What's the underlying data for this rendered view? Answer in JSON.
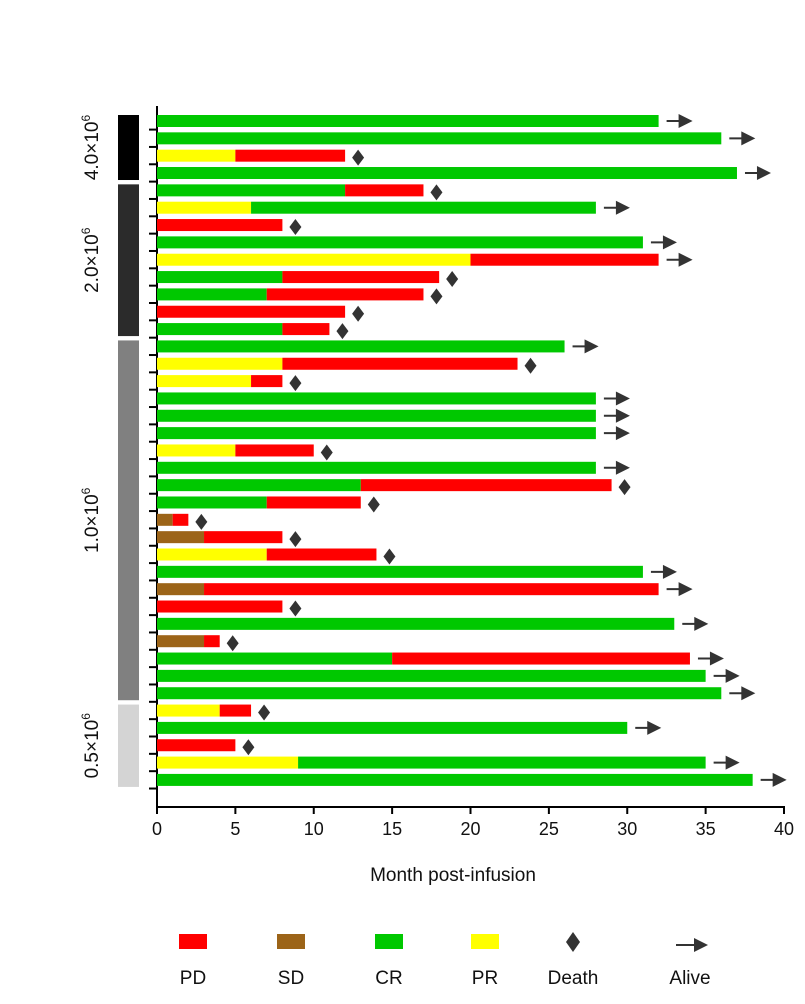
{
  "chart_data": {
    "type": "bar",
    "orientation": "horizontal",
    "subtype": "swimmer-plot",
    "xlabel": "Month post-infusion",
    "xlim": [
      0,
      40
    ],
    "xticks": [
      0,
      5,
      10,
      15,
      20,
      25,
      30,
      35,
      40
    ],
    "colors": {
      "PD": "#ff0000",
      "SD": "#9c6418",
      "CR": "#00c800",
      "PR": "#ffff00",
      "Death": "#333333",
      "Alive": "#333333"
    },
    "legend": [
      {
        "key": "PD",
        "label": "PD",
        "marker": "rect"
      },
      {
        "key": "SD",
        "label": "SD",
        "marker": "rect"
      },
      {
        "key": "CR",
        "label": "CR",
        "marker": "rect"
      },
      {
        "key": "PR",
        "label": "PR",
        "marker": "rect"
      },
      {
        "key": "Death",
        "label": "Death",
        "marker": "diamond"
      },
      {
        "key": "Alive",
        "label": "Alive",
        "marker": "arrow"
      }
    ],
    "legend_position": "bottom",
    "dose_groups": [
      {
        "label": "4.0×10",
        "exp": "6",
        "first_row": 0,
        "last_row": 3,
        "color": "#000000"
      },
      {
        "label": "2.0×10",
        "exp": "6",
        "first_row": 4,
        "last_row": 12,
        "color": "#2b2b2b"
      },
      {
        "label": "1.0×10",
        "exp": "6",
        "first_row": 13,
        "last_row": 33,
        "color": "#808080"
      },
      {
        "label": "0.5×10",
        "exp": "6",
        "first_row": 34,
        "last_row": 38,
        "color": "#d4d4d4"
      }
    ],
    "patients": [
      {
        "segments": [
          {
            "status": "CR",
            "start": 0,
            "end": 32
          }
        ],
        "outcome": "Alive"
      },
      {
        "segments": [
          {
            "status": "CR",
            "start": 0,
            "end": 36
          }
        ],
        "outcome": "Alive"
      },
      {
        "segments": [
          {
            "status": "PR",
            "start": 0,
            "end": 5
          },
          {
            "status": "PD",
            "start": 5,
            "end": 12
          }
        ],
        "outcome": "Death"
      },
      {
        "segments": [
          {
            "status": "CR",
            "start": 0,
            "end": 37
          }
        ],
        "outcome": "Alive"
      },
      {
        "segments": [
          {
            "status": "CR",
            "start": 0,
            "end": 12
          },
          {
            "status": "PD",
            "start": 12,
            "end": 17
          }
        ],
        "outcome": "Death"
      },
      {
        "segments": [
          {
            "status": "PR",
            "start": 0,
            "end": 6
          },
          {
            "status": "CR",
            "start": 6,
            "end": 28
          }
        ],
        "outcome": "Alive"
      },
      {
        "segments": [
          {
            "status": "PD",
            "start": 0,
            "end": 8
          }
        ],
        "outcome": "Death"
      },
      {
        "segments": [
          {
            "status": "CR",
            "start": 0,
            "end": 31
          }
        ],
        "outcome": "Alive"
      },
      {
        "segments": [
          {
            "status": "PR",
            "start": 0,
            "end": 20
          },
          {
            "status": "PD",
            "start": 20,
            "end": 32
          }
        ],
        "outcome": "Alive"
      },
      {
        "segments": [
          {
            "status": "CR",
            "start": 0,
            "end": 8
          },
          {
            "status": "PD",
            "start": 8,
            "end": 18
          }
        ],
        "outcome": "Death"
      },
      {
        "segments": [
          {
            "status": "CR",
            "start": 0,
            "end": 7
          },
          {
            "status": "PD",
            "start": 7,
            "end": 17
          }
        ],
        "outcome": "Death"
      },
      {
        "segments": [
          {
            "status": "PD",
            "start": 0,
            "end": 12
          }
        ],
        "outcome": "Death"
      },
      {
        "segments": [
          {
            "status": "CR",
            "start": 0,
            "end": 8
          },
          {
            "status": "PD",
            "start": 8,
            "end": 11
          }
        ],
        "outcome": "Death"
      },
      {
        "segments": [
          {
            "status": "CR",
            "start": 0,
            "end": 26
          }
        ],
        "outcome": "Alive"
      },
      {
        "segments": [
          {
            "status": "PR",
            "start": 0,
            "end": 8
          },
          {
            "status": "PD",
            "start": 8,
            "end": 23
          }
        ],
        "outcome": "Death"
      },
      {
        "segments": [
          {
            "status": "PR",
            "start": 0,
            "end": 6
          },
          {
            "status": "PD",
            "start": 6,
            "end": 8
          }
        ],
        "outcome": "Death"
      },
      {
        "segments": [
          {
            "status": "CR",
            "start": 0,
            "end": 28
          }
        ],
        "outcome": "Alive"
      },
      {
        "segments": [
          {
            "status": "CR",
            "start": 0,
            "end": 28
          }
        ],
        "outcome": "Alive"
      },
      {
        "segments": [
          {
            "status": "CR",
            "start": 0,
            "end": 28
          }
        ],
        "outcome": "Alive"
      },
      {
        "segments": [
          {
            "status": "PR",
            "start": 0,
            "end": 5
          },
          {
            "status": "PD",
            "start": 5,
            "end": 10
          }
        ],
        "outcome": "Death"
      },
      {
        "segments": [
          {
            "status": "CR",
            "start": 0,
            "end": 28
          }
        ],
        "outcome": "Alive"
      },
      {
        "segments": [
          {
            "status": "CR",
            "start": 0,
            "end": 13
          },
          {
            "status": "PD",
            "start": 13,
            "end": 29
          }
        ],
        "outcome": "Death"
      },
      {
        "segments": [
          {
            "status": "CR",
            "start": 0,
            "end": 7
          },
          {
            "status": "PD",
            "start": 7,
            "end": 13
          }
        ],
        "outcome": "Death"
      },
      {
        "segments": [
          {
            "status": "SD",
            "start": 0,
            "end": 1
          },
          {
            "status": "PD",
            "start": 1,
            "end": 2
          }
        ],
        "outcome": "Death"
      },
      {
        "segments": [
          {
            "status": "SD",
            "start": 0,
            "end": 3
          },
          {
            "status": "PD",
            "start": 3,
            "end": 8
          }
        ],
        "outcome": "Death"
      },
      {
        "segments": [
          {
            "status": "PR",
            "start": 0,
            "end": 7
          },
          {
            "status": "PD",
            "start": 7,
            "end": 14
          }
        ],
        "outcome": "Death"
      },
      {
        "segments": [
          {
            "status": "CR",
            "start": 0,
            "end": 31
          }
        ],
        "outcome": "Alive"
      },
      {
        "segments": [
          {
            "status": "SD",
            "start": 0,
            "end": 3
          },
          {
            "status": "PD",
            "start": 3,
            "end": 32
          }
        ],
        "outcome": "Alive"
      },
      {
        "segments": [
          {
            "status": "PD",
            "start": 0,
            "end": 8
          }
        ],
        "outcome": "Death"
      },
      {
        "segments": [
          {
            "status": "CR",
            "start": 0,
            "end": 33
          }
        ],
        "outcome": "Alive"
      },
      {
        "segments": [
          {
            "status": "SD",
            "start": 0,
            "end": 3
          },
          {
            "status": "PD",
            "start": 3,
            "end": 4
          }
        ],
        "outcome": "Death"
      },
      {
        "segments": [
          {
            "status": "CR",
            "start": 0,
            "end": 15
          },
          {
            "status": "PD",
            "start": 15,
            "end": 34
          }
        ],
        "outcome": "Alive"
      },
      {
        "segments": [
          {
            "status": "CR",
            "start": 0,
            "end": 35
          }
        ],
        "outcome": "Alive"
      },
      {
        "segments": [
          {
            "status": "CR",
            "start": 0,
            "end": 36
          }
        ],
        "outcome": "Alive"
      },
      {
        "segments": [
          {
            "status": "PR",
            "start": 0,
            "end": 4
          },
          {
            "status": "PD",
            "start": 4,
            "end": 6
          }
        ],
        "outcome": "Death"
      },
      {
        "segments": [
          {
            "status": "CR",
            "start": 0,
            "end": 30
          }
        ],
        "outcome": "Alive"
      },
      {
        "segments": [
          {
            "status": "PD",
            "start": 0,
            "end": 5
          }
        ],
        "outcome": "Death"
      },
      {
        "segments": [
          {
            "status": "PR",
            "start": 0,
            "end": 9
          },
          {
            "status": "CR",
            "start": 9,
            "end": 35
          }
        ],
        "outcome": "Alive"
      },
      {
        "segments": [
          {
            "status": "CR",
            "start": 0,
            "end": 38
          }
        ],
        "outcome": "Alive"
      }
    ]
  }
}
